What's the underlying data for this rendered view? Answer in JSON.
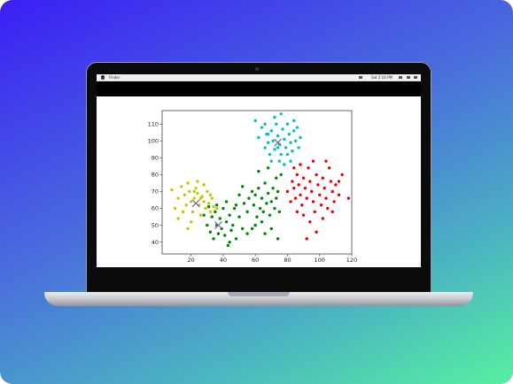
{
  "menubar": {
    "app_name": "Finder",
    "clock": "Sat 2:14 PM"
  },
  "chart_data": {
    "type": "scatter",
    "xlim": [
      2,
      120
    ],
    "ylim": [
      33,
      118
    ],
    "xticks": [
      20,
      40,
      60,
      80,
      100,
      120
    ],
    "yticks": [
      40,
      50,
      60,
      70,
      80,
      90,
      100,
      110
    ],
    "grid": false,
    "series": [
      {
        "color": "#c8c800",
        "points": [
          [
            8,
            71
          ],
          [
            12,
            66
          ],
          [
            14,
            73
          ],
          [
            16,
            68
          ],
          [
            17,
            62
          ],
          [
            18,
            75
          ],
          [
            19,
            70
          ],
          [
            20,
            64
          ],
          [
            21,
            58
          ],
          [
            22,
            66
          ],
          [
            23,
            72
          ],
          [
            24,
            69
          ],
          [
            25,
            62
          ],
          [
            26,
            56
          ],
          [
            27,
            67
          ],
          [
            28,
            64
          ],
          [
            29,
            60
          ],
          [
            30,
            70
          ],
          [
            31,
            63
          ],
          [
            32,
            58
          ],
          [
            33,
            66
          ],
          [
            34,
            61
          ],
          [
            20,
            52
          ],
          [
            15,
            58
          ],
          [
            10,
            60
          ],
          [
            12,
            54
          ],
          [
            24,
            76
          ],
          [
            28,
            74
          ],
          [
            32,
            68
          ],
          [
            36,
            60
          ],
          [
            18,
            48
          ],
          [
            22,
            70
          ],
          [
            26,
            66
          ]
        ],
        "centroid": [
          23,
          63
        ]
      },
      {
        "color": "#008800",
        "points": [
          [
            30,
            50
          ],
          [
            32,
            46
          ],
          [
            33,
            55
          ],
          [
            34,
            42
          ],
          [
            35,
            58
          ],
          [
            36,
            50
          ],
          [
            37,
            45
          ],
          [
            38,
            54
          ],
          [
            39,
            48
          ],
          [
            40,
            60
          ],
          [
            41,
            44
          ],
          [
            42,
            52
          ],
          [
            43,
            38
          ],
          [
            44,
            56
          ],
          [
            45,
            47
          ],
          [
            46,
            50
          ],
          [
            47,
            60
          ],
          [
            48,
            42
          ],
          [
            50,
            55
          ],
          [
            52,
            48
          ],
          [
            53,
            63
          ],
          [
            55,
            58
          ],
          [
            56,
            66
          ],
          [
            58,
            70
          ],
          [
            59,
            62
          ],
          [
            60,
            68
          ],
          [
            61,
            55
          ],
          [
            62,
            72
          ],
          [
            63,
            60
          ],
          [
            64,
            66
          ],
          [
            65,
            58
          ],
          [
            66,
            75
          ],
          [
            67,
            63
          ],
          [
            68,
            69
          ],
          [
            69,
            56
          ],
          [
            70,
            64
          ],
          [
            71,
            72
          ],
          [
            72,
            60
          ],
          [
            73,
            66
          ],
          [
            74,
            70
          ],
          [
            75,
            58
          ],
          [
            76,
            80
          ],
          [
            73,
            78
          ],
          [
            55,
            45
          ],
          [
            58,
            48
          ],
          [
            66,
            45
          ],
          [
            70,
            48
          ],
          [
            50,
            68
          ],
          [
            52,
            73
          ],
          [
            48,
            62
          ],
          [
            62,
            82
          ],
          [
            68,
            84
          ],
          [
            74,
            42
          ],
          [
            28,
            56
          ],
          [
            31,
            61
          ],
          [
            36,
            62
          ],
          [
            42,
            64
          ],
          [
            44,
            40
          ],
          [
            60,
            50
          ],
          [
            64,
            52
          ]
        ],
        "centroid": [
          37,
          50
        ]
      },
      {
        "color": "#00c0c0",
        "points": [
          [
            60,
            112
          ],
          [
            62,
            102
          ],
          [
            64,
            108
          ],
          [
            66,
            96
          ],
          [
            67,
            104
          ],
          [
            68,
            99
          ],
          [
            69,
            92
          ],
          [
            70,
            106
          ],
          [
            71,
            100
          ],
          [
            72,
            95
          ],
          [
            73,
            110
          ],
          [
            74,
            103
          ],
          [
            75,
            98
          ],
          [
            76,
            92
          ],
          [
            77,
            107
          ],
          [
            78,
            101
          ],
          [
            79,
            96
          ],
          [
            80,
            110
          ],
          [
            81,
            104
          ],
          [
            82,
            99
          ],
          [
            83,
            94
          ],
          [
            84,
            106
          ],
          [
            85,
            100
          ],
          [
            86,
            108
          ],
          [
            87,
            96
          ],
          [
            88,
            102
          ],
          [
            75,
            88
          ],
          [
            78,
            86
          ],
          [
            70,
            88
          ],
          [
            82,
            88
          ],
          [
            72,
            114
          ],
          [
            76,
            116
          ],
          [
            84,
            112
          ],
          [
            66,
            110
          ],
          [
            80,
            92
          ],
          [
            74,
            96
          ],
          [
            68,
            104
          ]
        ],
        "centroid": [
          74,
          99
        ]
      },
      {
        "color": "#ee0000",
        "points": [
          [
            80,
            70
          ],
          [
            82,
            64
          ],
          [
            83,
            76
          ],
          [
            84,
            72
          ],
          [
            85,
            66
          ],
          [
            86,
            80
          ],
          [
            87,
            74
          ],
          [
            88,
            68
          ],
          [
            89,
            62
          ],
          [
            90,
            78
          ],
          [
            91,
            72
          ],
          [
            92,
            66
          ],
          [
            93,
            84
          ],
          [
            94,
            76
          ],
          [
            95,
            70
          ],
          [
            96,
            64
          ],
          [
            97,
            58
          ],
          [
            98,
            80
          ],
          [
            99,
            74
          ],
          [
            100,
            68
          ],
          [
            101,
            62
          ],
          [
            102,
            78
          ],
          [
            103,
            72
          ],
          [
            104,
            66
          ],
          [
            105,
            60
          ],
          [
            106,
            84
          ],
          [
            107,
            76
          ],
          [
            108,
            70
          ],
          [
            109,
            64
          ],
          [
            110,
            74
          ],
          [
            112,
            68
          ],
          [
            114,
            80
          ],
          [
            118,
            66
          ],
          [
            90,
            56
          ],
          [
            94,
            52
          ],
          [
            98,
            46
          ],
          [
            92,
            42
          ],
          [
            86,
            58
          ],
          [
            84,
            84
          ],
          [
            96,
            88
          ],
          [
            88,
            86
          ],
          [
            104,
            88
          ],
          [
            102,
            54
          ],
          [
            108,
            58
          ],
          [
            112,
            76
          ]
        ],
        "centroid": null
      }
    ],
    "centroids": [
      [
        23,
        63
      ],
      [
        37,
        50
      ],
      [
        74,
        99
      ]
    ]
  }
}
